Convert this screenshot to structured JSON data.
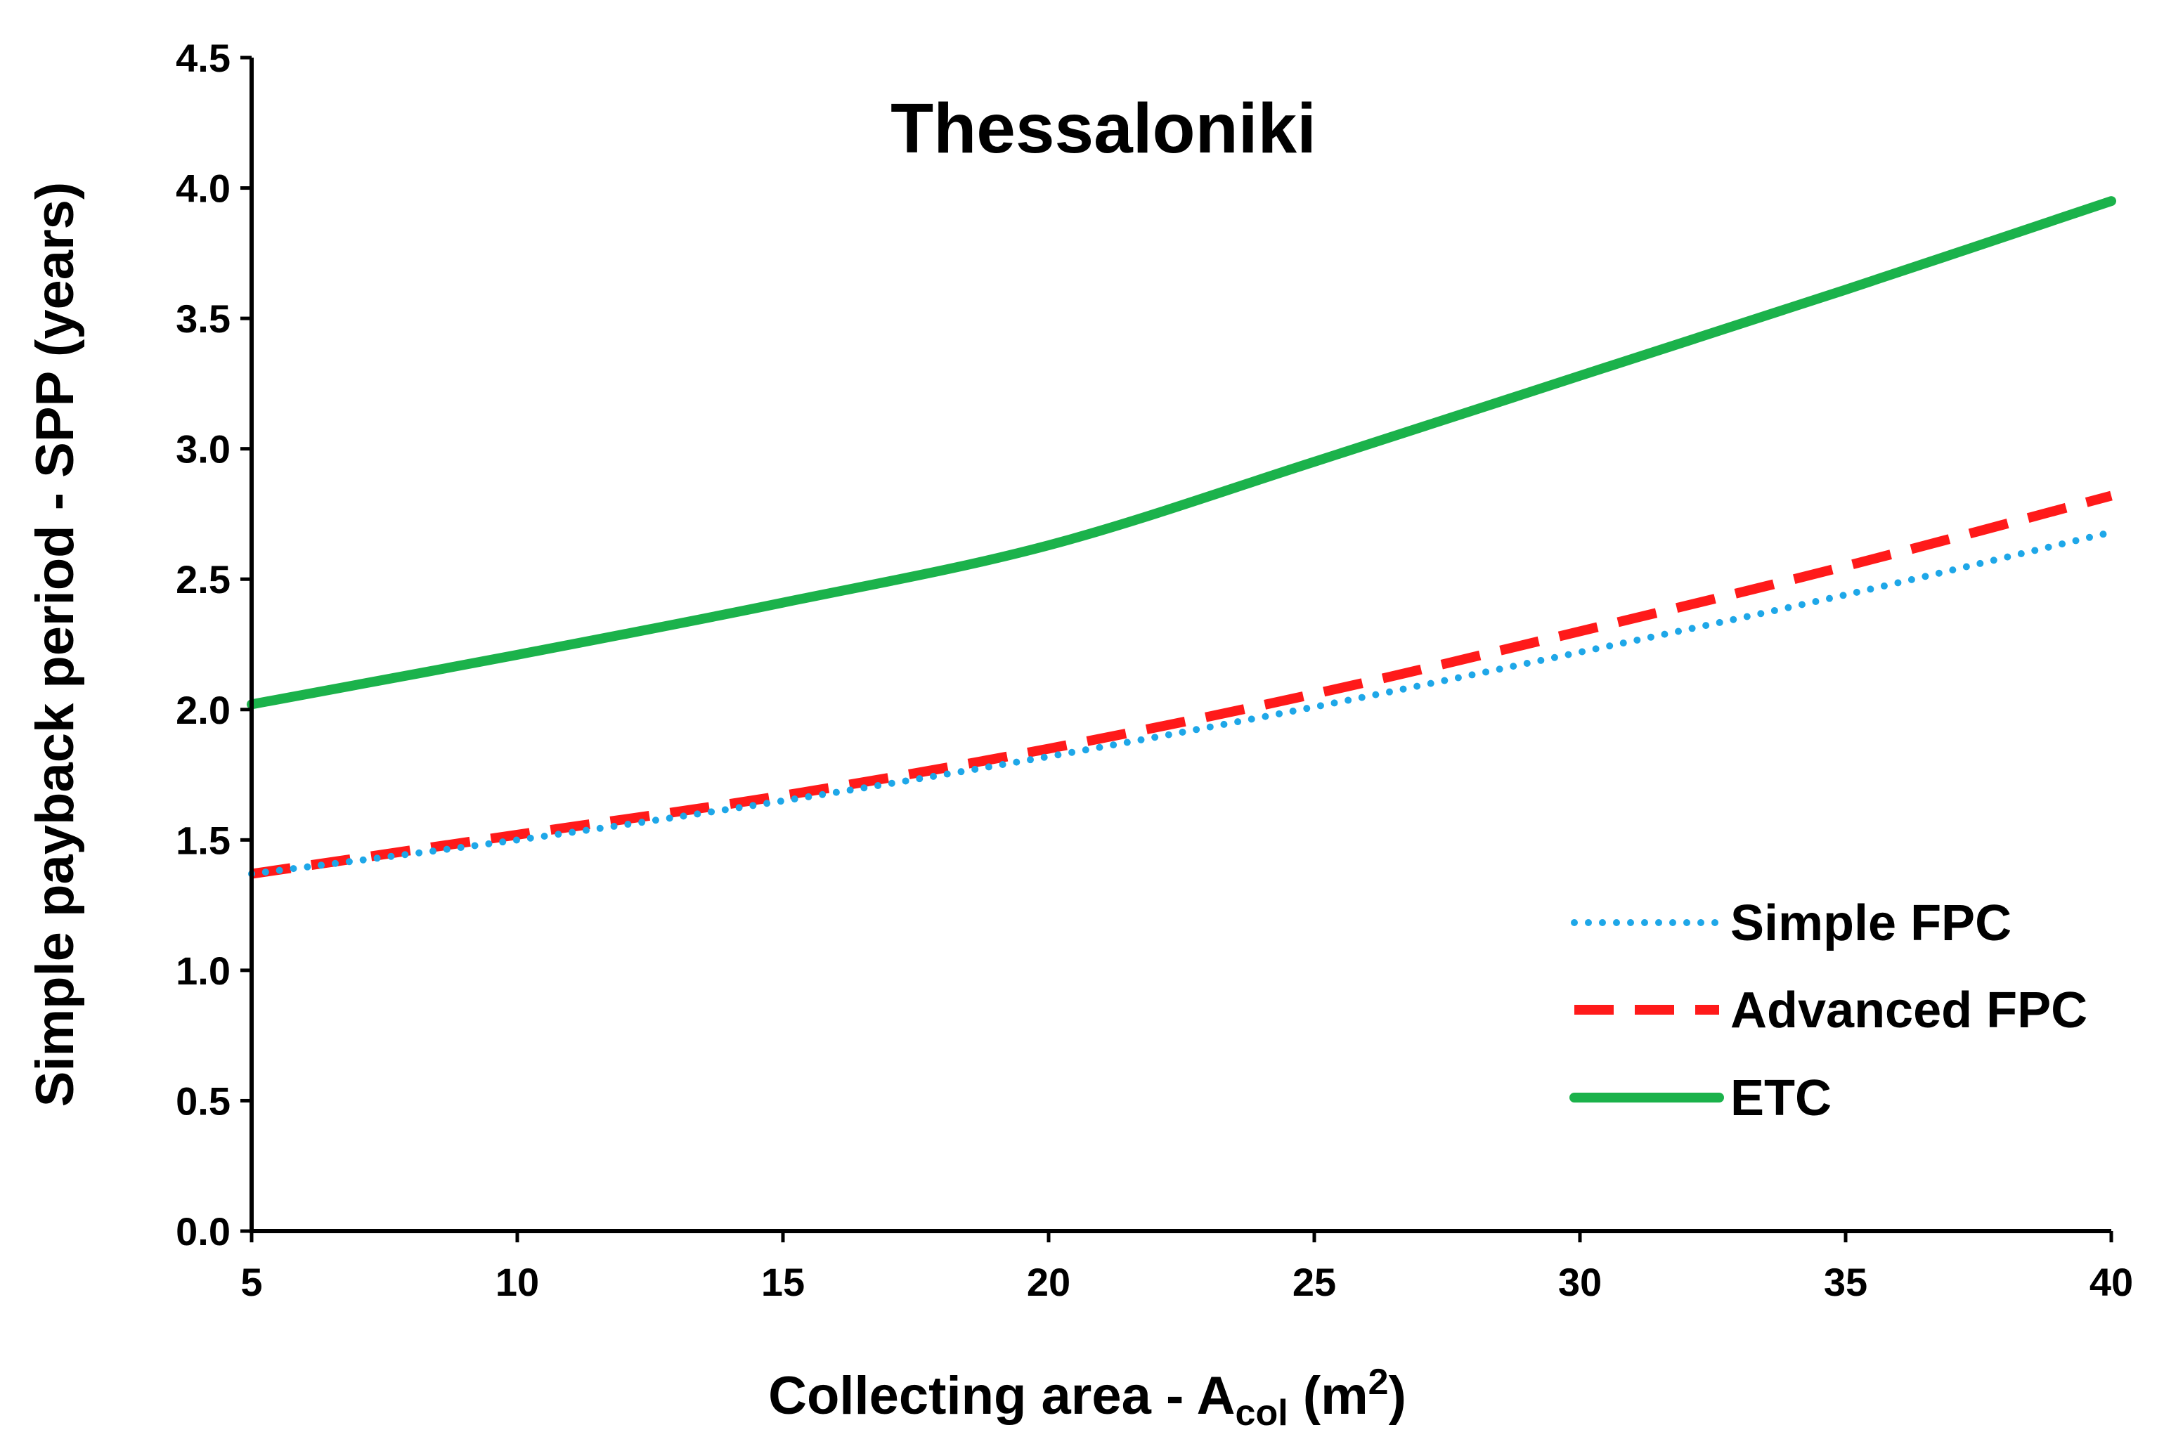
{
  "chart_data": {
    "type": "line",
    "title": "Thessaloniki",
    "xlabel": {
      "main": "Collecting area - A",
      "sub": "col",
      "unit_open": " (m",
      "unit_sup": "2",
      "unit_close": ")"
    },
    "ylabel": "Simple payback period - SPP (years)",
    "xlim": [
      5,
      40
    ],
    "ylim": [
      0,
      4.5
    ],
    "x_ticks": [
      5,
      10,
      15,
      20,
      25,
      30,
      35,
      40
    ],
    "y_ticks": [
      0,
      0.5,
      1.0,
      1.5,
      2.0,
      2.5,
      3.0,
      3.5,
      4.0,
      4.5
    ],
    "y_tick_labels": [
      "0.0",
      "0.5",
      "1.0",
      "1.5",
      "2.0",
      "2.5",
      "3.0",
      "3.5",
      "4.0",
      "4.5"
    ],
    "x_tick_labels": [
      "5",
      "10",
      "15",
      "20",
      "25",
      "30",
      "35",
      "40"
    ],
    "x": [
      5,
      10,
      15,
      20,
      25,
      30,
      35,
      40
    ],
    "legend_position": "bottom-right",
    "series": [
      {
        "name": "Simple FPC",
        "style": "dotted",
        "color": "#1ea7e8",
        "values": [
          1.37,
          1.5,
          1.65,
          1.82,
          2.01,
          2.22,
          2.44,
          2.68
        ]
      },
      {
        "name": "Advanced FPC",
        "style": "dashed",
        "color": "#ff1a1a",
        "values": [
          1.37,
          1.52,
          1.67,
          1.85,
          2.06,
          2.3,
          2.55,
          2.82
        ]
      },
      {
        "name": "ETC",
        "style": "solid",
        "color": "#1bb24b",
        "values": [
          2.02,
          2.21,
          2.41,
          2.63,
          2.95,
          3.28,
          3.61,
          3.95
        ]
      }
    ]
  }
}
